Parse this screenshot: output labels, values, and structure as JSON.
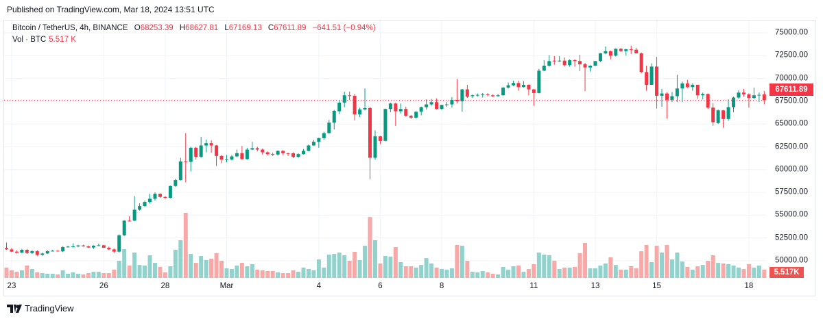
{
  "published": "Published on TradingView.com, Mar 18, 2024 13:51 UTC",
  "legend": {
    "symbol": "Bitcoin / TetherUS, 4h, BINANCE",
    "o_label": "O",
    "o": "68253.39",
    "h_label": "H",
    "h": "68627.81",
    "l_label": "L",
    "l": "67169.13",
    "c_label": "C",
    "c": "67611.89",
    "change": "−641.51 (−0.94%)"
  },
  "volume_legend": {
    "label": "Vol · BTC",
    "value": "5.517 K"
  },
  "footer": {
    "logo_text": "TradingView"
  },
  "colors": {
    "up": "#089981",
    "down": "#f23645",
    "vol_up": "#92d2cc",
    "vol_down": "#f7a9a7"
  },
  "chart_data": {
    "type": "candlestick",
    "interval": "4h",
    "ylim": [
      50000,
      75000
    ],
    "grid": true,
    "price_ticks": [
      "75000.00",
      "72500.00",
      "70000.00",
      "67500.00",
      "65000.00",
      "62500.00",
      "60000.00",
      "57500.00",
      "55000.00",
      "52500.00",
      "50000.00"
    ],
    "date_ticks": [
      {
        "label": "23",
        "candle": 1
      },
      {
        "label": "26",
        "candle": 19
      },
      {
        "label": "28",
        "candle": 31
      },
      {
        "label": "Mar",
        "candle": 43
      },
      {
        "label": "4",
        "candle": 61
      },
      {
        "label": "6",
        "candle": 73
      },
      {
        "label": "8",
        "candle": 85
      },
      {
        "label": "11",
        "candle": 103
      },
      {
        "label": "13",
        "candle": 115
      },
      {
        "label": "15",
        "candle": 127
      },
      {
        "label": "18",
        "candle": 145
      }
    ],
    "last_price": 67611.89,
    "last_price_label": "67611.89",
    "last_volume_label": "5.517K",
    "ohlc": [
      [
        51400,
        52000,
        51200,
        51250
      ],
      [
        51250,
        51400,
        50950,
        51000
      ],
      [
        51000,
        51150,
        50800,
        50900
      ],
      [
        50900,
        51300,
        50800,
        51200
      ],
      [
        51200,
        51300,
        50750,
        50850
      ],
      [
        50850,
        51150,
        50750,
        51050
      ],
      [
        51050,
        51150,
        50500,
        50650
      ],
      [
        50650,
        50900,
        50550,
        50800
      ],
      [
        50800,
        51150,
        50750,
        51050
      ],
      [
        51050,
        51200,
        51000,
        51100
      ],
      [
        51100,
        51150,
        51000,
        51030
      ],
      [
        51030,
        51600,
        50950,
        51500
      ],
      [
        51500,
        51650,
        51450,
        51550
      ],
      [
        51550,
        51900,
        51450,
        51580
      ],
      [
        51580,
        51750,
        51500,
        51680
      ],
      [
        51680,
        51750,
        51550,
        51580
      ],
      [
        51580,
        51680,
        51400,
        51450
      ],
      [
        51450,
        51700,
        51300,
        51650
      ],
      [
        51650,
        51900,
        51600,
        51700
      ],
      [
        51700,
        51750,
        51400,
        51430
      ],
      [
        51430,
        51550,
        51200,
        51250
      ],
      [
        51250,
        51350,
        50850,
        51000
      ],
      [
        51000,
        52900,
        50900,
        52800
      ],
      [
        52800,
        54450,
        52700,
        54400
      ],
      [
        54400,
        54900,
        54300,
        54350
      ],
      [
        54400,
        57100,
        54350,
        55600
      ],
      [
        55600,
        56300,
        55500,
        56000
      ],
      [
        56000,
        56600,
        55900,
        56450
      ],
      [
        56450,
        57350,
        56300,
        56800
      ],
      [
        56800,
        57500,
        56600,
        57350
      ],
      [
        57350,
        57400,
        56900,
        57000
      ],
      [
        57000,
        57100,
        56800,
        56900
      ],
      [
        56900,
        58250,
        56850,
        58200
      ],
      [
        58200,
        59000,
        58100,
        58850
      ],
      [
        58850,
        61300,
        58800,
        60900
      ],
      [
        60900,
        64000,
        58600,
        60850
      ],
      [
        60850,
        62500,
        59800,
        62400
      ],
      [
        62400,
        62500,
        61100,
        61400
      ],
      [
        61400,
        63600,
        61300,
        62650
      ],
      [
        62650,
        63300,
        61900,
        62900
      ],
      [
        62900,
        63200,
        61850,
        62650
      ],
      [
        62650,
        62700,
        60400,
        61500
      ],
      [
        61500,
        61600,
        60700,
        61100
      ],
      [
        61100,
        61600,
        60800,
        61100
      ],
      [
        61100,
        61600,
        61000,
        61450
      ],
      [
        61450,
        62200,
        61350,
        61800
      ],
      [
        61800,
        62600,
        61100,
        61150
      ],
      [
        61150,
        62400,
        61100,
        62200
      ],
      [
        62200,
        63050,
        62150,
        62350
      ],
      [
        62350,
        62500,
        62000,
        62200
      ],
      [
        62200,
        62300,
        61650,
        61900
      ],
      [
        61900,
        62000,
        61550,
        61700
      ],
      [
        61700,
        61850,
        61500,
        61650
      ],
      [
        61650,
        62100,
        61550,
        62050
      ],
      [
        62050,
        62150,
        61600,
        61800
      ],
      [
        61800,
        61850,
        61500,
        61750
      ],
      [
        61800,
        61900,
        61250,
        61400
      ],
      [
        61400,
        61800,
        61300,
        61700
      ],
      [
        61700,
        62250,
        61650,
        62050
      ],
      [
        62050,
        62750,
        62000,
        62650
      ],
      [
        62650,
        63250,
        62600,
        63050
      ],
      [
        63050,
        63500,
        62400,
        63450
      ],
      [
        63450,
        64150,
        63300,
        64000
      ],
      [
        64000,
        65450,
        63950,
        65150
      ],
      [
        65150,
        66550,
        64400,
        66450
      ],
      [
        66400,
        67650,
        66100,
        67350
      ],
      [
        67350,
        68550,
        66850,
        68150
      ],
      [
        68150,
        68550,
        67650,
        68100
      ],
      [
        68100,
        68300,
        65400,
        66050
      ],
      [
        66050,
        66800,
        65750,
        66600
      ],
      [
        66600,
        68900,
        66500,
        66750
      ],
      [
        66750,
        66900,
        58950,
        61300
      ],
      [
        61300,
        64300,
        61100,
        63650
      ],
      [
        63650,
        63700,
        62800,
        63150
      ],
      [
        63150,
        66700,
        63100,
        66650
      ],
      [
        66650,
        67350,
        66300,
        67250
      ],
      [
        67250,
        67350,
        64800,
        66400
      ],
      [
        66400,
        67250,
        66150,
        66650
      ],
      [
        66650,
        66900,
        65800,
        65900
      ],
      [
        65900,
        66000,
        65550,
        65700
      ],
      [
        65700,
        66400,
        65600,
        66350
      ],
      [
        66350,
        66900,
        65950,
        66850
      ],
      [
        66850,
        67700,
        66600,
        67150
      ],
      [
        67150,
        67750,
        67000,
        67400
      ],
      [
        67400,
        67800,
        66600,
        66650
      ],
      [
        66650,
        67100,
        66550,
        67100
      ],
      [
        67100,
        67400,
        66900,
        67150
      ],
      [
        67150,
        67950,
        66800,
        67650
      ],
      [
        67650,
        69950,
        67300,
        67500
      ],
      [
        67500,
        68850,
        66350,
        68800
      ],
      [
        68800,
        69300,
        67850,
        68000
      ],
      [
        68050,
        68250,
        67850,
        68150
      ],
      [
        68150,
        68350,
        68000,
        68200
      ],
      [
        68200,
        68400,
        67900,
        68250
      ],
      [
        68250,
        68400,
        68050,
        68200
      ],
      [
        68150,
        68250,
        67950,
        68050
      ],
      [
        68050,
        68300,
        68000,
        68150
      ],
      [
        68150,
        69050,
        68100,
        69000
      ],
      [
        69000,
        69550,
        68900,
        69250
      ],
      [
        69250,
        69750,
        69150,
        69500
      ],
      [
        69500,
        69750,
        68650,
        69050
      ],
      [
        69050,
        69700,
        69000,
        69300
      ],
      [
        69300,
        69350,
        68150,
        68800
      ],
      [
        68800,
        68850,
        67000,
        68400
      ],
      [
        68400,
        71050,
        68350,
        70850
      ],
      [
        70850,
        72000,
        70800,
        71400
      ],
      [
        71400,
        72550,
        71300,
        71900
      ],
      [
        71950,
        72450,
        71500,
        71900
      ],
      [
        71900,
        72450,
        71800,
        71950
      ],
      [
        71950,
        72300,
        71300,
        71450
      ],
      [
        71450,
        72100,
        71300,
        72000
      ],
      [
        72000,
        72100,
        71300,
        71900
      ],
      [
        71900,
        72600,
        70800,
        71550
      ],
      [
        71550,
        71700,
        68600,
        71200
      ],
      [
        71200,
        71450,
        70750,
        71400
      ],
      [
        71400,
        71900,
        71350,
        71900
      ],
      [
        71900,
        72800,
        71800,
        72750
      ],
      [
        72750,
        73500,
        72650,
        73000
      ],
      [
        73000,
        73050,
        72100,
        72500
      ],
      [
        72500,
        73300,
        72400,
        73250
      ],
      [
        73250,
        73350,
        72900,
        73000
      ],
      [
        73000,
        73250,
        72500,
        73200
      ],
      [
        73200,
        73600,
        72700,
        73150
      ],
      [
        73150,
        73350,
        72750,
        72750
      ],
      [
        72750,
        72850,
        70550,
        70700
      ],
      [
        70700,
        71400,
        68650,
        69300
      ],
      [
        69300,
        71650,
        69300,
        71300
      ],
      [
        71300,
        72350,
        66700,
        68100
      ],
      [
        68100,
        68850,
        66900,
        68350
      ],
      [
        68350,
        68500,
        65600,
        67650
      ],
      [
        67650,
        68500,
        67400,
        68050
      ],
      [
        68050,
        70400,
        67400,
        68900
      ],
      [
        68900,
        69650,
        67400,
        69450
      ],
      [
        69450,
        69850,
        68950,
        69050
      ],
      [
        69050,
        69450,
        68650,
        69300
      ],
      [
        69300,
        69300,
        67750,
        68150
      ],
      [
        68150,
        68450,
        67700,
        68300
      ],
      [
        68300,
        68350,
        66650,
        66800
      ],
      [
        66800,
        67300,
        64800,
        65200
      ],
      [
        65100,
        66600,
        65000,
        66500
      ],
      [
        66500,
        66550,
        64600,
        65550
      ],
      [
        65550,
        67700,
        65350,
        66850
      ],
      [
        66850,
        68000,
        66300,
        67900
      ],
      [
        67900,
        68700,
        67750,
        68450
      ],
      [
        68450,
        68850,
        68000,
        68250
      ],
      [
        68250,
        68350,
        66800,
        67850
      ],
      [
        67850,
        69000,
        67750,
        68150
      ],
      [
        68150,
        68450,
        67400,
        68200
      ],
      [
        68253.39,
        68627.81,
        67169.13,
        67611.89
      ]
    ],
    "volume_k": [
      6.9,
      5.1,
      4.1,
      5.1,
      8.3,
      6.0,
      3.7,
      3.2,
      2.8,
      2.8,
      2.3,
      5.1,
      2.8,
      3.7,
      2.8,
      2.3,
      3.2,
      4.1,
      4.1,
      3.2,
      3.2,
      5.5,
      11.5,
      19.3,
      8.3,
      17.0,
      8.7,
      8.3,
      15.2,
      10.1,
      7.4,
      3.7,
      7.8,
      18.9,
      25.3,
      43.7,
      16.1,
      10.1,
      14.7,
      12.0,
      12.9,
      16.6,
      11.5,
      6.4,
      6.0,
      8.3,
      10.1,
      7.8,
      9.2,
      5.5,
      5.1,
      4.6,
      4.6,
      3.7,
      3.2,
      3.2,
      5.1,
      4.1,
      6.9,
      6.0,
      5.1,
      12.4,
      6.9,
      15.6,
      16.1,
      17.0,
      15.2,
      11.5,
      17.5,
      12.0,
      21.6,
      40.9,
      25.3,
      9.7,
      14.7,
      14.3,
      20.7,
      10.6,
      7.8,
      7.8,
      6.9,
      8.7,
      13.3,
      9.7,
      6.9,
      6.0,
      5.5,
      6.4,
      22.1,
      21.6,
      11.5,
      4.1,
      3.7,
      4.6,
      3.7,
      2.8,
      2.3,
      7.4,
      5.5,
      7.8,
      8.3,
      4.1,
      6.0,
      9.2,
      17.0,
      15.6,
      15.2,
      11.5,
      6.0,
      6.9,
      6.9,
      7.4,
      16.6,
      23.5,
      6.4,
      6.4,
      8.3,
      9.7,
      13.8,
      8.7,
      5.5,
      5.5,
      7.8,
      6.4,
      17.9,
      22.1,
      10.6,
      21.6,
      17.0,
      22.1,
      12.4,
      17.0,
      11.0,
      7.4,
      5.5,
      7.8,
      8.7,
      11.5,
      15.2,
      10.1,
      9.7,
      9.2,
      8.3,
      6.9,
      6.0,
      9.2,
      6.9,
      8.3,
      5.517
    ]
  }
}
